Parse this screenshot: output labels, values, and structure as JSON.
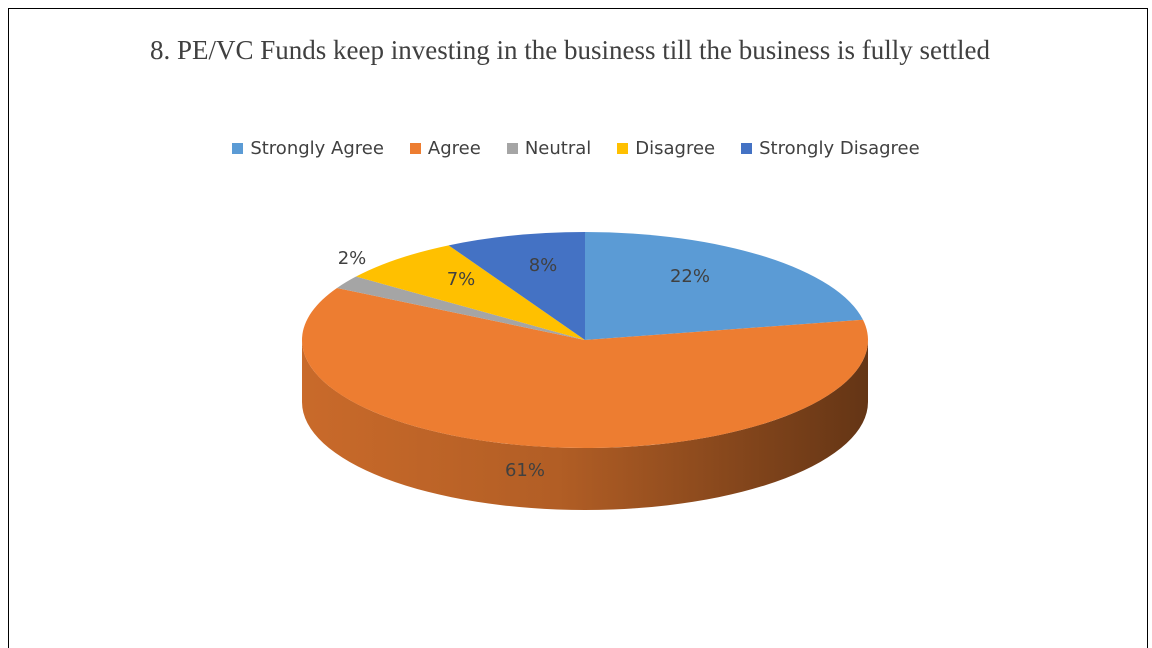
{
  "chart_data": {
    "type": "pie",
    "title": "8. PE/VC Funds keep investing in the business till the business is fully settled",
    "legend_position": "top",
    "slices": [
      {
        "name": "Strongly Agree",
        "value": 22,
        "label": "22%",
        "color": "#5B9BD5"
      },
      {
        "name": "Agree",
        "value": 61,
        "label": "61%",
        "color": "#ED7D31"
      },
      {
        "name": "Neutral",
        "value": 2,
        "label": "2%",
        "color": "#A5A5A5"
      },
      {
        "name": "Disagree",
        "value": 7,
        "label": "7%",
        "color": "#FFC000"
      },
      {
        "name": "Strongly Disagree",
        "value": 8,
        "label": "8%",
        "color": "#4472C4"
      }
    ]
  }
}
